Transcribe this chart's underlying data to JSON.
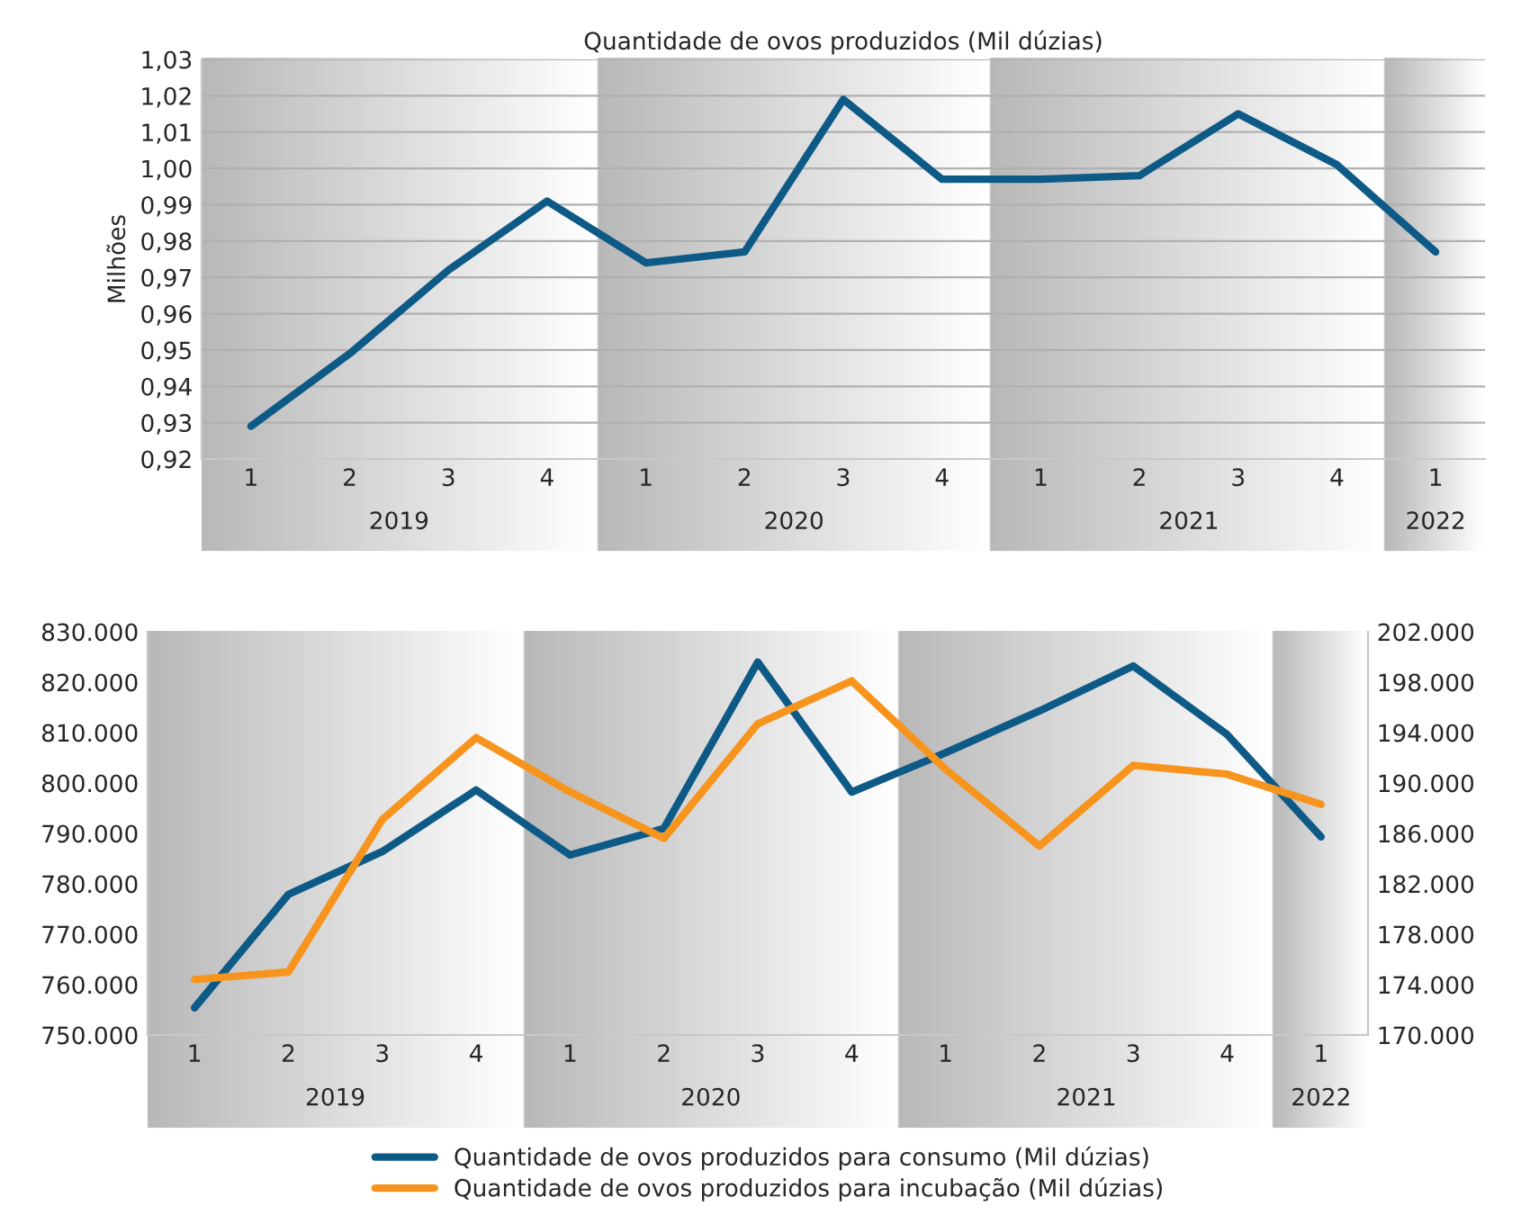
{
  "chart_data": [
    {
      "type": "line",
      "title": "Quantidade de ovos produzidos (Mil dúzias)",
      "ylabel": "Milhões",
      "categories": [
        "1",
        "2",
        "3",
        "4",
        "1",
        "2",
        "3",
        "4",
        "1",
        "2",
        "3",
        "4",
        "1"
      ],
      "annotations": [
        "2019",
        "2020",
        "2021",
        "2022"
      ],
      "series": [
        {
          "color": "#0e5a87",
          "values": [
            0.929,
            0.949,
            0.972,
            0.991,
            0.974,
            0.977,
            1.019,
            0.997,
            0.997,
            0.998,
            1.015,
            1.001,
            0.977
          ]
        }
      ],
      "ylim": [
        0.92,
        1.03
      ],
      "yticks": [
        {
          "value": 0.92,
          "label": "0,92"
        },
        {
          "value": 0.93,
          "label": "0,93"
        },
        {
          "value": 0.94,
          "label": "0,94"
        },
        {
          "value": 0.95,
          "label": "0,95"
        },
        {
          "value": 0.96,
          "label": "0,96"
        },
        {
          "value": 0.97,
          "label": "0,97"
        },
        {
          "value": 0.98,
          "label": "0,98"
        },
        {
          "value": 0.99,
          "label": "0,99"
        },
        {
          "value": 1.0,
          "label": "1,00"
        },
        {
          "value": 1.01,
          "label": "1,01"
        },
        {
          "value": 1.02,
          "label": "1,02"
        },
        {
          "value": 1.03,
          "label": "1,03"
        }
      ],
      "grid": "y",
      "legend": false,
      "marker": "none",
      "line_style": "solid"
    },
    {
      "type": "line",
      "categories": [
        "1",
        "2",
        "3",
        "4",
        "1",
        "2",
        "3",
        "4",
        "1",
        "2",
        "3",
        "4",
        "1"
      ],
      "annotations": [
        "2019",
        "2020",
        "2021",
        "2022"
      ],
      "series": [
        {
          "name": "Quantidade de ovos produzidos para consumo (Mil dúzias)",
          "color": "#0e5a87",
          "values": [
            755400,
            777900,
            786400,
            798600,
            785700,
            791000,
            824000,
            798200,
            806000,
            814300,
            823200,
            809600,
            789300
          ]
        },
        {
          "name": "Quantidade de ovos produzidos para incubação (Mil dúzias)",
          "color": "#f7941d",
          "axis": "y2",
          "values": [
            174400,
            175000,
            187100,
            193600,
            189300,
            185600,
            194700,
            198100,
            191100,
            185000,
            191400,
            190700,
            188300
          ]
        }
      ],
      "ylim": [
        750000,
        830000
      ],
      "yticks": [
        {
          "value": 750000,
          "label": "750.000"
        },
        {
          "value": 760000,
          "label": "760.000"
        },
        {
          "value": 770000,
          "label": "770.000"
        },
        {
          "value": 780000,
          "label": "780.000"
        },
        {
          "value": 790000,
          "label": "790.000"
        },
        {
          "value": 800000,
          "label": "800.000"
        },
        {
          "value": 810000,
          "label": "810.000"
        },
        {
          "value": 820000,
          "label": "820.000"
        },
        {
          "value": 830000,
          "label": "830.000"
        }
      ],
      "y2lim": [
        170000,
        202000
      ],
      "y2ticks": [
        {
          "value": 170000,
          "label": "170.000"
        },
        {
          "value": 174000,
          "label": "174.000"
        },
        {
          "value": 178000,
          "label": "178.000"
        },
        {
          "value": 182000,
          "label": "182.000"
        },
        {
          "value": 186000,
          "label": "186.000"
        },
        {
          "value": 190000,
          "label": "190.000"
        },
        {
          "value": 194000,
          "label": "194.000"
        },
        {
          "value": 198000,
          "label": "198.000"
        },
        {
          "value": 202000,
          "label": "202.000"
        }
      ],
      "grid": false,
      "legend": "bottom",
      "marker": "none",
      "line_style": "solid"
    }
  ]
}
